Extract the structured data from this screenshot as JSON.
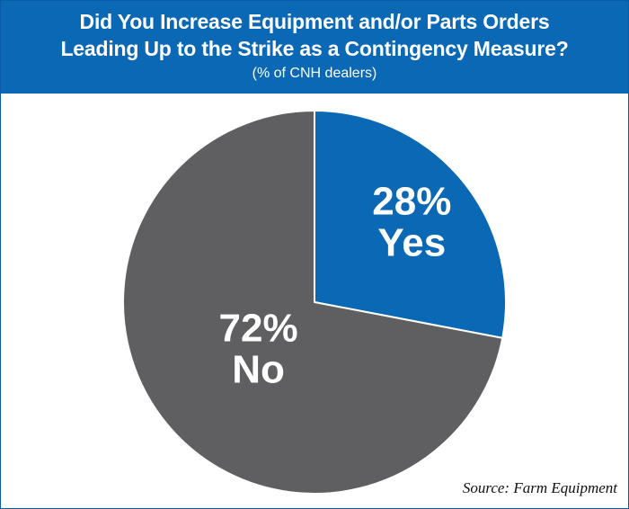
{
  "header": {
    "title_line1": "Did You Increase Equipment and/or Parts Orders",
    "title_line2": "Leading Up to the Strike as a Contingency Measure?",
    "subtitle": "(% of CNH dealers)"
  },
  "chart_data": {
    "type": "pie",
    "title": "Did You Increase Equipment and/or Parts Orders Leading Up to the Strike as a Contingency Measure?",
    "subtitle": "(% of CNH dealers)",
    "slices": [
      {
        "label": "Yes",
        "value": 28,
        "percent_label": "28%",
        "color": "#0a68b4"
      },
      {
        "label": "No",
        "value": 72,
        "percent_label": "72%",
        "color": "#5f5f61"
      }
    ],
    "start_angle": "12 o'clock",
    "direction": "clockwise",
    "legend": "none (labels inside slices)"
  },
  "source": "Source: Farm Equipment",
  "colors": {
    "header_bg": "#0a68b4",
    "slice_stroke": "#ffffff"
  }
}
